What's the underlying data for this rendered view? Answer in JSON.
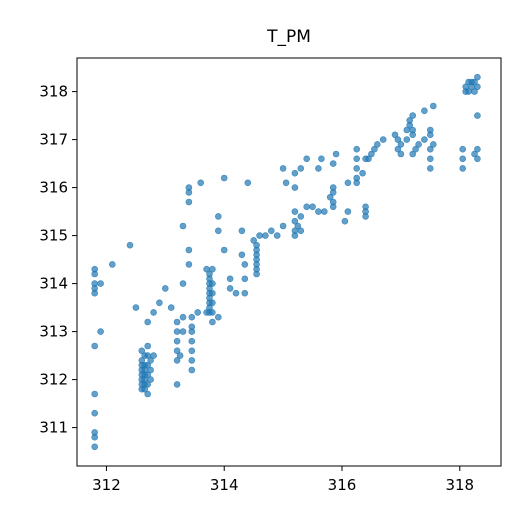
{
  "chart_data": {
    "type": "scatter",
    "title": "T_PM",
    "xlabel": "",
    "ylabel": "",
    "xlim": [
      311.5,
      318.7
    ],
    "ylim": [
      310.2,
      318.7
    ],
    "x_ticks": [
      "312",
      "314",
      "316",
      "318"
    ],
    "y_ticks": [
      "311",
      "312",
      "313",
      "314",
      "315",
      "316",
      "317",
      "318"
    ],
    "grid": false,
    "color": "#1f77b4",
    "points": [
      [
        311.8,
        310.6
      ],
      [
        311.8,
        310.8
      ],
      [
        311.8,
        310.9
      ],
      [
        311.8,
        311.3
      ],
      [
        311.8,
        311.7
      ],
      [
        311.8,
        312.7
      ],
      [
        311.8,
        313.8
      ],
      [
        311.8,
        313.9
      ],
      [
        311.8,
        314.0
      ],
      [
        311.8,
        314.2
      ],
      [
        311.8,
        314.3
      ],
      [
        311.9,
        313.0
      ],
      [
        311.9,
        314.0
      ],
      [
        312.1,
        314.4
      ],
      [
        312.4,
        314.8
      ],
      [
        312.5,
        313.5
      ],
      [
        312.6,
        311.8
      ],
      [
        312.6,
        311.9
      ],
      [
        312.6,
        312.0
      ],
      [
        312.6,
        312.1
      ],
      [
        312.6,
        312.2
      ],
      [
        312.6,
        312.3
      ],
      [
        312.6,
        312.4
      ],
      [
        312.6,
        312.6
      ],
      [
        312.65,
        311.8
      ],
      [
        312.65,
        311.9
      ],
      [
        312.65,
        312.0
      ],
      [
        312.65,
        312.1
      ],
      [
        312.65,
        312.2
      ],
      [
        312.65,
        312.3
      ],
      [
        312.65,
        312.5
      ],
      [
        312.7,
        311.7
      ],
      [
        312.7,
        311.9
      ],
      [
        312.7,
        312.1
      ],
      [
        312.7,
        312.3
      ],
      [
        312.7,
        312.5
      ],
      [
        312.7,
        312.7
      ],
      [
        312.7,
        313.2
      ],
      [
        312.75,
        312.0
      ],
      [
        312.75,
        312.2
      ],
      [
        312.75,
        312.4
      ],
      [
        312.8,
        312.5
      ],
      [
        312.8,
        313.4
      ],
      [
        312.9,
        313.6
      ],
      [
        313.0,
        313.9
      ],
      [
        313.1,
        313.5
      ],
      [
        313.2,
        312.4
      ],
      [
        313.2,
        312.6
      ],
      [
        313.2,
        312.8
      ],
      [
        313.2,
        313.0
      ],
      [
        313.2,
        313.2
      ],
      [
        313.2,
        311.9
      ],
      [
        313.25,
        312.5
      ],
      [
        313.3,
        313.0
      ],
      [
        313.3,
        313.3
      ],
      [
        313.3,
        314.0
      ],
      [
        313.3,
        315.2
      ],
      [
        313.4,
        315.9
      ],
      [
        313.4,
        316.0
      ],
      [
        313.4,
        315.7
      ],
      [
        313.4,
        314.4
      ],
      [
        313.4,
        314.7
      ],
      [
        313.45,
        312.4
      ],
      [
        313.45,
        312.6
      ],
      [
        313.45,
        312.8
      ],
      [
        313.45,
        313.0
      ],
      [
        313.45,
        313.1
      ],
      [
        313.45,
        312.2
      ],
      [
        313.45,
        313.3
      ],
      [
        313.55,
        313.4
      ],
      [
        313.6,
        316.1
      ],
      [
        313.7,
        314.3
      ],
      [
        313.7,
        313.4
      ],
      [
        313.75,
        313.4
      ],
      [
        313.75,
        313.5
      ],
      [
        313.75,
        313.6
      ],
      [
        313.75,
        313.7
      ],
      [
        313.75,
        313.8
      ],
      [
        313.75,
        313.9
      ],
      [
        313.75,
        314.0
      ],
      [
        313.75,
        314.1
      ],
      [
        313.75,
        314.2
      ],
      [
        313.8,
        313.4
      ],
      [
        313.8,
        313.6
      ],
      [
        313.8,
        313.8
      ],
      [
        313.8,
        314.0
      ],
      [
        313.8,
        313.2
      ],
      [
        313.8,
        314.3
      ],
      [
        313.9,
        315.4
      ],
      [
        313.9,
        315.1
      ],
      [
        313.9,
        313.3
      ],
      [
        314.0,
        316.2
      ],
      [
        314.0,
        314.7
      ],
      [
        314.1,
        313.9
      ],
      [
        314.1,
        314.1
      ],
      [
        314.2,
        313.8
      ],
      [
        314.3,
        315.1
      ],
      [
        314.3,
        314.6
      ],
      [
        314.35,
        314.4
      ],
      [
        314.35,
        314.1
      ],
      [
        314.35,
        313.8
      ],
      [
        314.4,
        316.1
      ],
      [
        314.5,
        314.9
      ],
      [
        314.6,
        315.0
      ],
      [
        314.55,
        314.2
      ],
      [
        314.55,
        314.3
      ],
      [
        314.55,
        314.4
      ],
      [
        314.55,
        314.5
      ],
      [
        314.55,
        314.6
      ],
      [
        314.55,
        314.7
      ],
      [
        314.55,
        314.8
      ],
      [
        314.7,
        315.0
      ],
      [
        314.8,
        315.1
      ],
      [
        314.9,
        315.0
      ],
      [
        315.0,
        316.4
      ],
      [
        315.0,
        315.2
      ],
      [
        315.05,
        316.1
      ],
      [
        315.2,
        315.0
      ],
      [
        315.2,
        315.1
      ],
      [
        315.2,
        315.3
      ],
      [
        315.2,
        315.5
      ],
      [
        315.2,
        316.0
      ],
      [
        315.2,
        316.3
      ],
      [
        315.25,
        315.2
      ],
      [
        315.3,
        315.1
      ],
      [
        315.3,
        315.4
      ],
      [
        315.3,
        316.4
      ],
      [
        315.4,
        316.6
      ],
      [
        315.4,
        315.6
      ],
      [
        315.5,
        315.6
      ],
      [
        315.6,
        315.5
      ],
      [
        315.6,
        316.4
      ],
      [
        315.65,
        316.6
      ],
      [
        315.7,
        315.5
      ],
      [
        315.8,
        315.8
      ],
      [
        315.85,
        315.6
      ],
      [
        315.85,
        315.7
      ],
      [
        315.85,
        315.9
      ],
      [
        315.85,
        316.0
      ],
      [
        315.85,
        316.5
      ],
      [
        315.9,
        316.7
      ],
      [
        316.05,
        315.3
      ],
      [
        316.1,
        315.5
      ],
      [
        316.1,
        316.1
      ],
      [
        316.25,
        316.1
      ],
      [
        316.25,
        316.2
      ],
      [
        316.25,
        316.4
      ],
      [
        316.25,
        316.6
      ],
      [
        316.25,
        316.8
      ],
      [
        316.35,
        316.3
      ],
      [
        316.4,
        315.4
      ],
      [
        316.4,
        315.5
      ],
      [
        316.4,
        315.6
      ],
      [
        316.4,
        316.6
      ],
      [
        316.45,
        316.6
      ],
      [
        316.5,
        316.7
      ],
      [
        316.55,
        316.8
      ],
      [
        316.6,
        316.9
      ],
      [
        316.7,
        317.0
      ],
      [
        316.9,
        317.1
      ],
      [
        316.95,
        316.8
      ],
      [
        316.95,
        317.0
      ],
      [
        317.0,
        316.9
      ],
      [
        317.0,
        316.7
      ],
      [
        317.1,
        317.0
      ],
      [
        317.1,
        317.2
      ],
      [
        317.15,
        317.3
      ],
      [
        317.15,
        317.4
      ],
      [
        317.2,
        317.5
      ],
      [
        317.2,
        317.2
      ],
      [
        317.2,
        317.1
      ],
      [
        317.2,
        316.7
      ],
      [
        317.25,
        316.8
      ],
      [
        317.3,
        316.9
      ],
      [
        317.4,
        317.0
      ],
      [
        317.4,
        317.6
      ],
      [
        317.5,
        316.6
      ],
      [
        317.5,
        316.4
      ],
      [
        317.5,
        316.8
      ],
      [
        317.5,
        317.1
      ],
      [
        317.5,
        317.2
      ],
      [
        317.55,
        317.7
      ],
      [
        317.55,
        316.9
      ],
      [
        318.05,
        316.6
      ],
      [
        318.05,
        316.4
      ],
      [
        318.05,
        316.8
      ],
      [
        318.1,
        318.0
      ],
      [
        318.1,
        318.1
      ],
      [
        318.15,
        318.2
      ],
      [
        318.15,
        318.0
      ],
      [
        318.2,
        318.1
      ],
      [
        318.2,
        318.2
      ],
      [
        318.25,
        318.0
      ],
      [
        318.25,
        318.2
      ],
      [
        318.3,
        318.3
      ],
      [
        318.3,
        317.5
      ],
      [
        318.3,
        316.6
      ],
      [
        318.3,
        316.8
      ],
      [
        318.25,
        316.7
      ],
      [
        318.3,
        318.1
      ]
    ]
  }
}
